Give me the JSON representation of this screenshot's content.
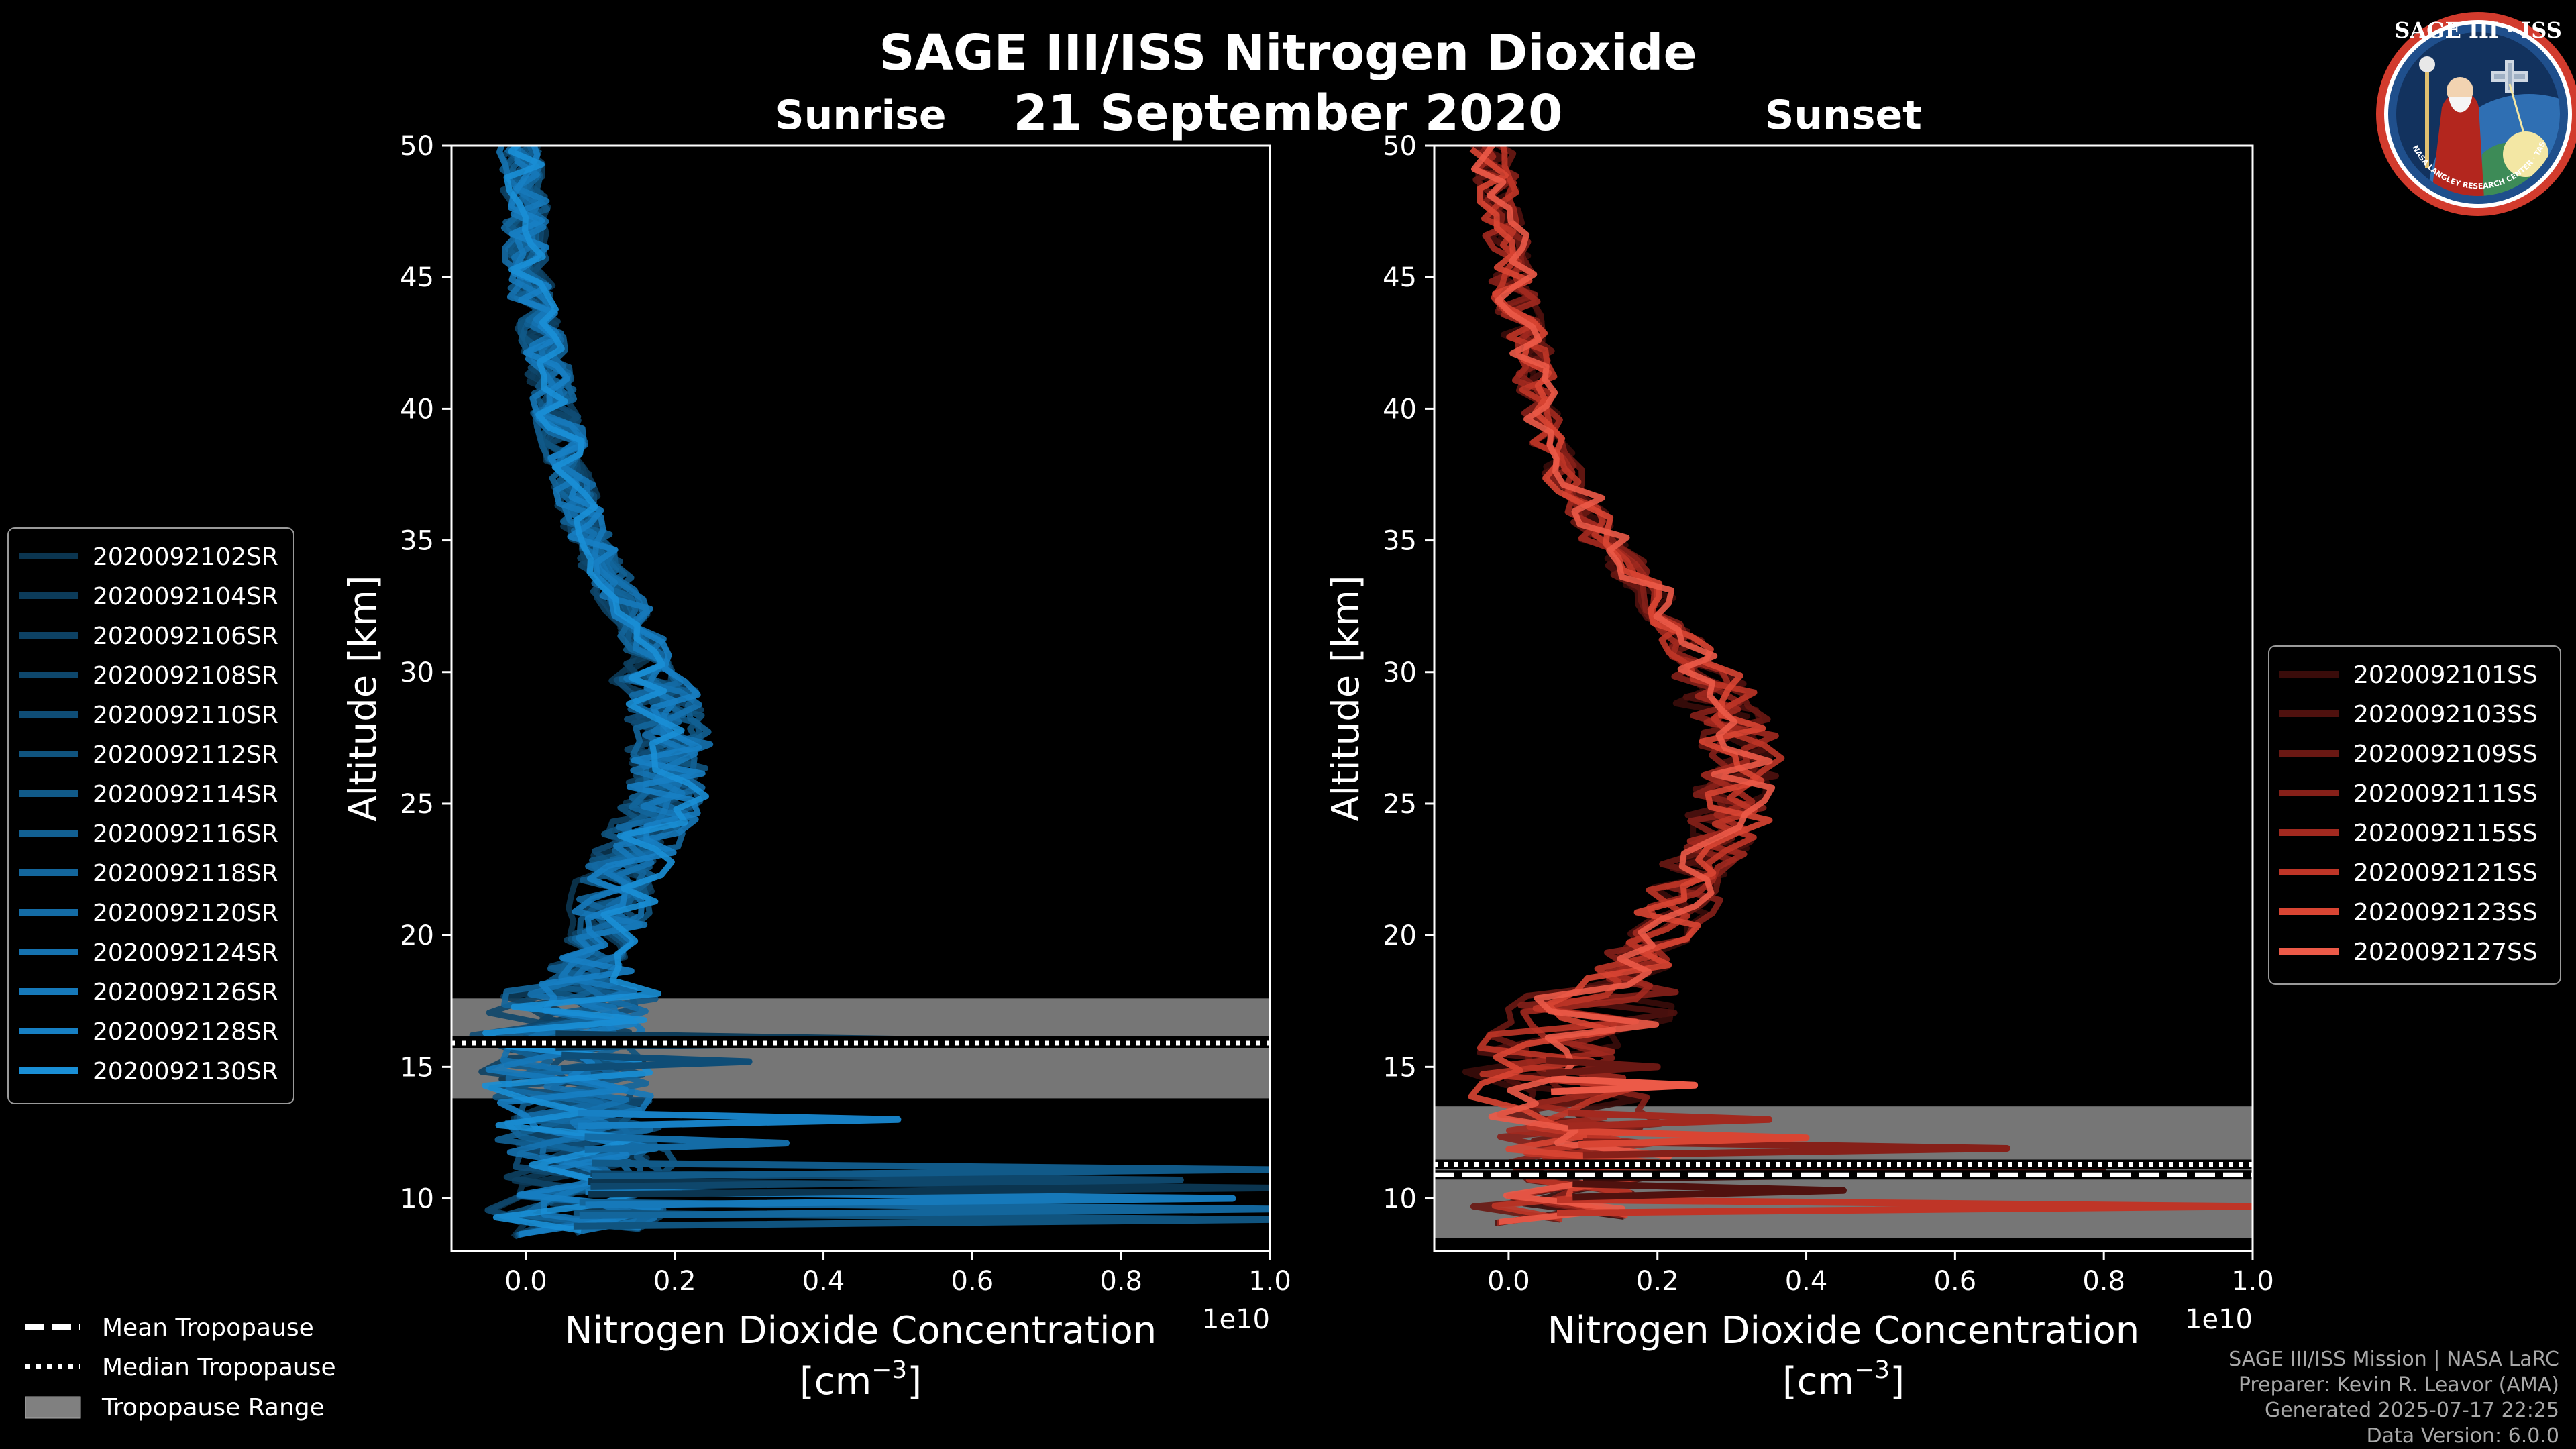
{
  "figure": {
    "title": "SAGE III/ISS Nitrogen Dioxide",
    "date": "21 September 2020",
    "badge": {
      "mission": "SAGE III · ISS",
      "ring": "BALL · NASA LANGLEY RESEARCH CENTER · TAS · ESA"
    },
    "credits": [
      "SAGE III/ISS Mission | NASA LaRC",
      "Preparer: Kevin R. Leavor (AMA)",
      "Generated 2025-07-17 22:25",
      "Data Version: 6.0.0"
    ],
    "colors": {
      "background": "#000000",
      "range": "#808080",
      "text": "#ffffff"
    }
  },
  "chart_data": [
    {
      "type": "line",
      "title": "Sunrise",
      "xlabel": "Nitrogen Dioxide Concentration",
      "xunit": "[cm",
      "xunit_exp": "−3",
      "xunit_close": "]",
      "offset_text": "1e10",
      "ylabel": "Altitude [km]",
      "xlim": [
        -0.1,
        1.0
      ],
      "ylim": [
        8,
        50
      ],
      "xticks": [
        "0.0",
        "0.2",
        "0.4",
        "0.6",
        "0.8",
        "1.0"
      ],
      "xtick_values": [
        0,
        0.2,
        0.4,
        0.6,
        0.8,
        1.0
      ],
      "yticks": [
        "10",
        "15",
        "20",
        "25",
        "30",
        "35",
        "40",
        "45",
        "50"
      ],
      "ytick_values": [
        10,
        15,
        20,
        25,
        30,
        35,
        40,
        45,
        50
      ],
      "tropopause": {
        "mean": 16.0,
        "median": 15.9,
        "range": [
          13.8,
          17.6
        ]
      },
      "legend": [
        "2020092102SR",
        "2020092104SR",
        "2020092106SR",
        "2020092108SR",
        "2020092110SR",
        "2020092112SR",
        "2020092114SR",
        "2020092116SR",
        "2020092118SR",
        "2020092120SR",
        "2020092124SR",
        "2020092126SR",
        "2020092128SR",
        "2020092130SR"
      ],
      "series_colors": [
        "#0b3550",
        "#0c3b59",
        "#0d4163",
        "#0e476c",
        "#0f4d76",
        "#10547f",
        "#115a89",
        "#126093",
        "#13669c",
        "#146ca6",
        "#1572b0",
        "#1679ba",
        "#1780c4",
        "#1a8fd6"
      ],
      "mean_profile": {
        "alt": [
          8.5,
          10,
          11,
          12,
          13,
          14,
          15,
          16,
          17,
          18,
          19,
          20,
          21,
          22,
          23,
          24,
          25,
          26,
          27,
          28,
          29,
          30,
          31,
          32,
          33,
          34,
          35,
          36,
          37,
          38,
          39,
          40,
          42,
          44,
          46,
          48,
          50
        ],
        "no2": [
          0.05,
          0.08,
          0.09,
          0.08,
          0.07,
          0.06,
          0.05,
          0.04,
          0.05,
          0.07,
          0.1,
          0.11,
          0.12,
          0.13,
          0.15,
          0.17,
          0.19,
          0.2,
          0.2,
          0.2,
          0.19,
          0.18,
          0.17,
          0.15,
          0.13,
          0.11,
          0.09,
          0.08,
          0.07,
          0.06,
          0.05,
          0.04,
          0.03,
          0.01,
          0.0,
          0.0,
          -0.01
        ]
      },
      "spikes": [
        {
          "alt": 9.2,
          "x": 1.0
        },
        {
          "alt": 9.6,
          "x": 1.0
        },
        {
          "alt": 10.0,
          "x": 0.95
        },
        {
          "alt": 10.4,
          "x": 1.0
        },
        {
          "alt": 10.7,
          "x": 0.88
        },
        {
          "alt": 11.1,
          "x": 1.0
        },
        {
          "alt": 12.1,
          "x": 0.35
        },
        {
          "alt": 13.0,
          "x": 0.5
        },
        {
          "alt": 16.0,
          "x": 0.62
        },
        {
          "alt": 15.2,
          "x": 0.3
        }
      ]
    },
    {
      "type": "line",
      "title": "Sunset",
      "xlabel": "Nitrogen Dioxide Concentration",
      "xunit": "[cm",
      "xunit_exp": "−3",
      "xunit_close": "]",
      "offset_text": "1e10",
      "ylabel": "Altitude [km]",
      "xlim": [
        -0.1,
        1.0
      ],
      "ylim": [
        8,
        50
      ],
      "xticks": [
        "0.0",
        "0.2",
        "0.4",
        "0.6",
        "0.8",
        "1.0"
      ],
      "xtick_values": [
        0,
        0.2,
        0.4,
        0.6,
        0.8,
        1.0
      ],
      "yticks": [
        "10",
        "15",
        "20",
        "25",
        "30",
        "35",
        "40",
        "45",
        "50"
      ],
      "ytick_values": [
        10,
        15,
        20,
        25,
        30,
        35,
        40,
        45,
        50
      ],
      "tropopause": {
        "mean": 10.9,
        "median": 11.3,
        "range": [
          8.5,
          13.5
        ]
      },
      "legend": [
        "2020092101SS",
        "2020092103SS",
        "2020092109SS",
        "2020092111SS",
        "2020092115SS",
        "2020092121SS",
        "2020092123SS",
        "2020092127SS"
      ],
      "series_colors": [
        "#3a0c0a",
        "#4f110e",
        "#6a1813",
        "#862019",
        "#a2291f",
        "#bf3527",
        "#d94533",
        "#ec5a48"
      ],
      "mean_profile": {
        "alt": [
          9,
          10,
          11,
          12,
          13,
          14,
          15,
          16,
          17,
          18,
          19,
          20,
          21,
          22,
          23,
          24,
          25,
          26,
          27,
          28,
          29,
          30,
          31,
          32,
          33,
          34,
          35,
          36,
          37,
          38,
          39,
          40,
          42,
          44,
          46,
          48,
          50
        ],
        "no2": [
          0.03,
          0.08,
          0.1,
          0.1,
          0.08,
          0.06,
          0.05,
          0.07,
          0.1,
          0.13,
          0.16,
          0.19,
          0.21,
          0.23,
          0.25,
          0.27,
          0.28,
          0.29,
          0.29,
          0.28,
          0.26,
          0.24,
          0.22,
          0.2,
          0.18,
          0.15,
          0.12,
          0.1,
          0.08,
          0.06,
          0.05,
          0.04,
          0.03,
          0.01,
          0.0,
          -0.01,
          -0.02
        ]
      },
      "spikes": [
        {
          "alt": 9.7,
          "x": 1.0
        },
        {
          "alt": 11.0,
          "x": 0.8
        },
        {
          "alt": 11.9,
          "x": 0.67
        },
        {
          "alt": 12.3,
          "x": 0.4
        },
        {
          "alt": 10.3,
          "x": 0.45
        },
        {
          "alt": 13.0,
          "x": 0.35
        },
        {
          "alt": 14.3,
          "x": 0.25
        },
        {
          "alt": 15.0,
          "x": 0.2
        }
      ]
    }
  ],
  "bottom_legend": {
    "mean": "Mean Tropopause",
    "median": "Median Tropopause",
    "range": "Tropopause Range"
  }
}
